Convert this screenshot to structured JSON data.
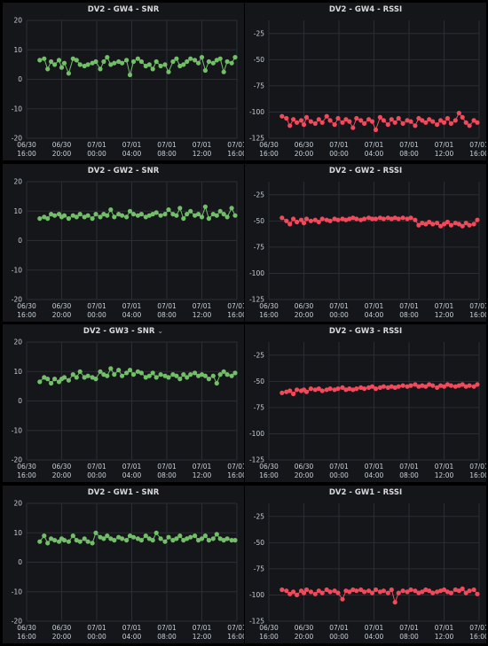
{
  "x_ticks": [
    "06/30\n16:00",
    "06/30\n20:00",
    "07/01\n00:00",
    "07/01\n04:00",
    "07/01\n08:00",
    "07/01\n12:00",
    "07/01\n16:00"
  ],
  "chart_data": [
    {
      "type": "line",
      "title": "DV2 - GW4 - SNR",
      "metric": "SNR",
      "has_menu": false,
      "ylim": [
        -20,
        20
      ],
      "yticks": [
        "20",
        "10",
        "0",
        "-10",
        "-20"
      ],
      "grid": true,
      "color": "#73bf69",
      "x_hours": [
        1.5,
        2,
        2.4,
        2.8,
        3.2,
        3.7,
        4,
        4.3,
        4.8,
        5.3,
        5.7,
        6.1,
        6.6,
        7,
        7.5,
        7.9,
        8.4,
        8.8,
        9.2,
        9.6,
        10,
        10.5,
        10.9,
        11.4,
        11.8,
        12.2,
        12.7,
        13.1,
        13.6,
        14,
        14.4,
        14.8,
        15.3,
        15.8,
        16.2,
        16.7,
        17.1,
        17.5,
        17.9,
        18.3,
        18.7,
        19.2,
        19.6,
        20,
        20.4,
        20.8,
        21.3,
        21.7,
        22.1,
        22.5,
        22.9,
        23.4,
        23.8
      ],
      "values": [
        6.5,
        7,
        3.5,
        6,
        5,
        6.5,
        4,
        5.5,
        2,
        7,
        6.5,
        5,
        4.5,
        5,
        5.5,
        6,
        3.5,
        6,
        7.5,
        5,
        5.5,
        6,
        5.5,
        6.5,
        1.5,
        6,
        7,
        6,
        4.5,
        5,
        3.5,
        6,
        4.5,
        5,
        2.5,
        6,
        7,
        4.5,
        5,
        6,
        7,
        6.5,
        5.5,
        7.5,
        3,
        6,
        5.5,
        6.5,
        7,
        2.5,
        6,
        5.5,
        7.5
      ]
    },
    {
      "type": "line",
      "title": "DV2 - GW4 - RSSI",
      "metric": "RSSI",
      "has_menu": false,
      "ylim": [
        -125,
        -12.5
      ],
      "yticks": [
        "-25",
        "-50",
        "-75",
        "-100",
        "-125"
      ],
      "grid": true,
      "color": "#f2495c",
      "x_hours": [
        1.5,
        2,
        2.4,
        2.8,
        3.2,
        3.7,
        4,
        4.3,
        4.8,
        5.3,
        5.7,
        6.1,
        6.6,
        7,
        7.5,
        7.9,
        8.4,
        8.8,
        9.2,
        9.6,
        10,
        10.5,
        10.9,
        11.4,
        11.8,
        12.2,
        12.7,
        13.1,
        13.6,
        14,
        14.4,
        14.8,
        15.3,
        15.8,
        16.2,
        16.7,
        17.1,
        17.5,
        17.9,
        18.3,
        18.7,
        19.2,
        19.6,
        20,
        20.4,
        20.8,
        21.3,
        21.7,
        22.1,
        22.5,
        22.9,
        23.4,
        23.8
      ],
      "values": [
        -104,
        -106,
        -113,
        -107,
        -110,
        -108,
        -112,
        -105,
        -109,
        -111,
        -107,
        -110,
        -104,
        -108,
        -112,
        -106,
        -110,
        -107,
        -109,
        -115,
        -106,
        -108,
        -111,
        -107,
        -109,
        -117,
        -105,
        -108,
        -112,
        -107,
        -110,
        -106,
        -111,
        -108,
        -109,
        -113,
        -106,
        -108,
        -110,
        -107,
        -109,
        -112,
        -108,
        -110,
        -106,
        -111,
        -108,
        -101,
        -105,
        -110,
        -113,
        -108,
        -110
      ]
    },
    {
      "type": "line",
      "title": "DV2 - GW2 - SNR",
      "metric": "SNR",
      "has_menu": false,
      "ylim": [
        -20,
        20
      ],
      "yticks": [
        "20",
        "10",
        "0",
        "-10",
        "-20"
      ],
      "grid": true,
      "color": "#73bf69",
      "x_hours": [
        1.5,
        2,
        2.4,
        2.8,
        3.2,
        3.7,
        4,
        4.3,
        4.8,
        5.3,
        5.7,
        6.1,
        6.6,
        7,
        7.5,
        7.9,
        8.4,
        8.8,
        9.2,
        9.6,
        10,
        10.5,
        10.9,
        11.4,
        11.8,
        12.2,
        12.7,
        13.1,
        13.6,
        14,
        14.4,
        14.8,
        15.3,
        15.8,
        16.2,
        16.7,
        17.1,
        17.5,
        17.9,
        18.3,
        18.7,
        19.2,
        19.6,
        20,
        20.4,
        20.8,
        21.3,
        21.7,
        22.1,
        22.5,
        22.9,
        23.4,
        23.8
      ],
      "values": [
        7.5,
        8,
        7.5,
        9,
        8.5,
        9,
        8,
        8.5,
        7.5,
        8.5,
        8,
        9,
        8,
        8.5,
        7.5,
        9,
        8,
        9,
        8.5,
        10.5,
        8,
        9,
        8.5,
        8,
        10,
        9,
        8.5,
        9,
        8,
        8.5,
        9,
        9.5,
        8.5,
        9,
        10.5,
        9,
        8.5,
        11,
        7.5,
        9,
        10,
        8.5,
        9,
        8,
        11.5,
        7.5,
        9,
        8.5,
        10,
        9,
        8,
        11,
        8.5
      ]
    },
    {
      "type": "line",
      "title": "DV2 - GW2 - RSSI",
      "metric": "RSSI",
      "has_menu": false,
      "ylim": [
        -125,
        -12.5
      ],
      "yticks": [
        "-25",
        "-50",
        "-75",
        "-100",
        "-125"
      ],
      "grid": true,
      "color": "#f2495c",
      "x_hours": [
        1.5,
        2,
        2.4,
        2.8,
        3.2,
        3.7,
        4,
        4.3,
        4.8,
        5.3,
        5.7,
        6.1,
        6.6,
        7,
        7.5,
        7.9,
        8.4,
        8.8,
        9.2,
        9.6,
        10,
        10.5,
        10.9,
        11.4,
        11.8,
        12.2,
        12.7,
        13.1,
        13.6,
        14,
        14.4,
        14.8,
        15.3,
        15.8,
        16.2,
        16.7,
        17.1,
        17.5,
        17.9,
        18.3,
        18.7,
        19.2,
        19.6,
        20,
        20.4,
        20.8,
        21.3,
        21.7,
        22.1,
        22.5,
        22.9,
        23.4,
        23.8
      ],
      "values": [
        -47,
        -50,
        -53,
        -48,
        -51,
        -49,
        -52,
        -48,
        -50,
        -49,
        -51,
        -48,
        -49,
        -50,
        -48,
        -49,
        -48,
        -49,
        -48,
        -47,
        -48,
        -49,
        -48,
        -47,
        -48,
        -48,
        -47,
        -48,
        -47,
        -48,
        -47,
        -48,
        -47,
        -48,
        -47,
        -49,
        -54,
        -52,
        -53,
        -51,
        -53,
        -52,
        -55,
        -53,
        -51,
        -54,
        -52,
        -53,
        -55,
        -52,
        -54,
        -53,
        -49
      ]
    },
    {
      "type": "line",
      "title": "DV2 - GW3 - SNR",
      "metric": "SNR",
      "has_menu": true,
      "ylim": [
        -20,
        20
      ],
      "yticks": [
        "20",
        "10",
        "0",
        "-10",
        "-20"
      ],
      "grid": true,
      "color": "#73bf69",
      "x_hours": [
        1.5,
        2,
        2.4,
        2.8,
        3.2,
        3.7,
        4,
        4.3,
        4.8,
        5.3,
        5.7,
        6.1,
        6.6,
        7,
        7.5,
        7.9,
        8.4,
        8.8,
        9.2,
        9.6,
        10,
        10.5,
        10.9,
        11.4,
        11.8,
        12.2,
        12.7,
        13.1,
        13.6,
        14,
        14.4,
        14.8,
        15.3,
        15.8,
        16.2,
        16.7,
        17.1,
        17.5,
        17.9,
        18.3,
        18.7,
        19.2,
        19.6,
        20,
        20.4,
        20.8,
        21.3,
        21.7,
        22.1,
        22.5,
        22.9,
        23.4,
        23.8
      ],
      "values": [
        6.5,
        8,
        7.5,
        6,
        7.5,
        6.5,
        7.5,
        8,
        7,
        9,
        8,
        10,
        8,
        8.5,
        8,
        7.5,
        10,
        9,
        8.5,
        11,
        9,
        10.5,
        8.5,
        9.5,
        10.5,
        9,
        10,
        9.5,
        8,
        8.5,
        9.5,
        8,
        9,
        8.5,
        8,
        9,
        8.5,
        7.5,
        9,
        8,
        9,
        9.5,
        8.5,
        9,
        8.5,
        7.5,
        8.5,
        6,
        9,
        10,
        9,
        8.5,
        9.5
      ]
    },
    {
      "type": "line",
      "title": "DV2 - GW3 - RSSI",
      "metric": "RSSI",
      "has_menu": false,
      "ylim": [
        -125,
        -12.5
      ],
      "yticks": [
        "-25",
        "-50",
        "-75",
        "-100",
        "-125"
      ],
      "grid": true,
      "color": "#f2495c",
      "x_hours": [
        1.5,
        2,
        2.4,
        2.8,
        3.2,
        3.7,
        4,
        4.3,
        4.8,
        5.3,
        5.7,
        6.1,
        6.6,
        7,
        7.5,
        7.9,
        8.4,
        8.8,
        9.2,
        9.6,
        10,
        10.5,
        10.9,
        11.4,
        11.8,
        12.2,
        12.7,
        13.1,
        13.6,
        14,
        14.4,
        14.8,
        15.3,
        15.8,
        16.2,
        16.7,
        17.1,
        17.5,
        17.9,
        18.3,
        18.7,
        19.2,
        19.6,
        20,
        20.4,
        20.8,
        21.3,
        21.7,
        22.1,
        22.5,
        22.9,
        23.4,
        23.8
      ],
      "values": [
        -61,
        -60,
        -59,
        -62,
        -58,
        -59,
        -58,
        -60,
        -57,
        -58,
        -57,
        -59,
        -58,
        -57,
        -58,
        -57,
        -56,
        -58,
        -57,
        -58,
        -57,
        -56,
        -57,
        -56,
        -55,
        -57,
        -56,
        -55,
        -56,
        -55,
        -56,
        -55,
        -54,
        -55,
        -54,
        -53,
        -55,
        -54,
        -55,
        -53,
        -54,
        -56,
        -54,
        -55,
        -53,
        -54,
        -55,
        -54,
        -53,
        -55,
        -54,
        -55,
        -53
      ]
    },
    {
      "type": "line",
      "title": "DV2 - GW1 - SNR",
      "metric": "SNR",
      "has_menu": false,
      "ylim": [
        -20,
        20
      ],
      "yticks": [
        "20",
        "10",
        "0",
        "-10",
        "-20"
      ],
      "grid": true,
      "color": "#73bf69",
      "x_hours": [
        1.5,
        2,
        2.4,
        2.8,
        3.2,
        3.7,
        4,
        4.3,
        4.8,
        5.3,
        5.7,
        6.1,
        6.6,
        7,
        7.5,
        7.9,
        8.4,
        8.8,
        9.2,
        9.6,
        10,
        10.5,
        10.9,
        11.4,
        11.8,
        12.2,
        12.7,
        13.1,
        13.6,
        14,
        14.4,
        14.8,
        15.3,
        15.8,
        16.2,
        16.7,
        17.1,
        17.5,
        17.9,
        18.3,
        18.7,
        19.2,
        19.6,
        20,
        20.4,
        20.8,
        21.3,
        21.7,
        22.1,
        22.5,
        22.9,
        23.4,
        23.8
      ],
      "values": [
        7,
        9,
        6.5,
        8,
        7.5,
        7,
        8,
        7.5,
        7,
        9,
        7.5,
        7,
        8,
        7,
        6.5,
        10,
        8.5,
        8,
        9,
        8,
        7.5,
        8.5,
        8,
        7.5,
        9,
        8.5,
        8,
        7.5,
        9,
        8,
        7.5,
        10,
        8,
        7,
        8.5,
        7.5,
        8,
        9,
        7.5,
        8,
        8.5,
        9,
        7.5,
        8,
        9,
        7.5,
        8,
        9.5,
        8,
        7.5,
        8,
        7.5,
        7.5
      ]
    },
    {
      "type": "line",
      "title": "DV2 - GW1 - RSSI",
      "metric": "RSSI",
      "has_menu": false,
      "ylim": [
        -125,
        -12.5
      ],
      "yticks": [
        "-25",
        "-50",
        "-75",
        "-100",
        "-125"
      ],
      "grid": true,
      "color": "#f2495c",
      "x_hours": [
        1.5,
        2,
        2.4,
        2.8,
        3.2,
        3.7,
        4,
        4.3,
        4.8,
        5.3,
        5.7,
        6.1,
        6.6,
        7,
        7.5,
        7.9,
        8.4,
        8.8,
        9.2,
        9.6,
        10,
        10.5,
        10.9,
        11.4,
        11.8,
        12.2,
        12.7,
        13.1,
        13.6,
        14,
        14.4,
        14.8,
        15.3,
        15.8,
        16.2,
        16.7,
        17.1,
        17.5,
        17.9,
        18.3,
        18.7,
        19.2,
        19.6,
        20,
        20.4,
        20.8,
        21.3,
        21.7,
        22.1,
        22.5,
        22.9,
        23.4,
        23.8
      ],
      "values": [
        -95,
        -96,
        -99,
        -97,
        -100,
        -96,
        -98,
        -95,
        -97,
        -99,
        -96,
        -98,
        -95,
        -97,
        -96,
        -98,
        -104,
        -96,
        -97,
        -95,
        -96,
        -95,
        -97,
        -96,
        -98,
        -95,
        -97,
        -96,
        -98,
        -95,
        -107,
        -98,
        -96,
        -97,
        -95,
        -96,
        -98,
        -97,
        -95,
        -96,
        -98,
        -97,
        -96,
        -95,
        -97,
        -98,
        -95,
        -96,
        -94,
        -98,
        -96,
        -95,
        -99
      ]
    }
  ]
}
